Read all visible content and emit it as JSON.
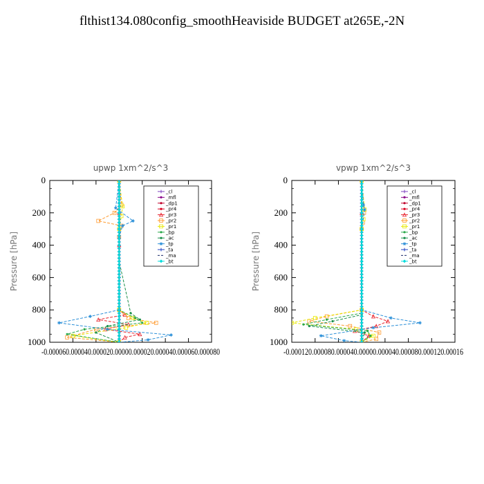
{
  "figure_title": "flthist134.080config_smoothHeaviside  BUDGET at265E,-2N",
  "chart_data": [
    {
      "type": "line",
      "title": "upwp   1xm^2/s^3",
      "ylabel": "Pressure [hPa]",
      "ylim": [
        1000,
        0
      ],
      "xlim": [
        -6e-05,
        8e-05
      ],
      "xtick_label_string": "-0.000060.000040.000020.00000.000020.000040.000060.000080",
      "xtick_values": [
        -6e-05,
        -4e-05,
        -2e-05,
        0,
        2e-05,
        4e-05,
        6e-05,
        8e-05
      ],
      "yticks": [
        0,
        200,
        400,
        600,
        800,
        1000
      ],
      "ytick_labels": [
        "0",
        "200",
        "400",
        "600",
        "800",
        "1000"
      ],
      "legend_position": "top-right",
      "series": [
        {
          "name": "_cl",
          "color": "#7b3fbf",
          "marker": "plus",
          "x": [
            0,
            0,
            0,
            0,
            0,
            0,
            0,
            0,
            0,
            0,
            0
          ],
          "y": [
            0,
            100,
            200,
            300,
            400,
            500,
            600,
            700,
            800,
            900,
            1000
          ]
        },
        {
          "name": "_mfl",
          "color": "#8b0a8b",
          "marker": "dot",
          "x": [
            0,
            0,
            0,
            0,
            0,
            0,
            0,
            0,
            0,
            0,
            0
          ],
          "y": [
            0,
            100,
            200,
            300,
            400,
            500,
            600,
            700,
            800,
            900,
            1000
          ]
        },
        {
          "name": "_dp1",
          "color": "#c0002a",
          "marker": "dot",
          "x": [
            0,
            0,
            0,
            0,
            0,
            0,
            0,
            0,
            0,
            0,
            0
          ],
          "y": [
            0,
            100,
            200,
            300,
            400,
            500,
            600,
            700,
            800,
            900,
            1000
          ]
        },
        {
          "name": "_pr4",
          "color": "#d8001e",
          "marker": "dot",
          "x": [
            0,
            0,
            0,
            0,
            0,
            0,
            0,
            0,
            0,
            0,
            0
          ],
          "y": [
            0,
            100,
            200,
            300,
            400,
            500,
            600,
            700,
            800,
            900,
            1000
          ]
        },
        {
          "name": "_pr3",
          "color": "#e8202a",
          "marker": "triangle",
          "x": [
            0,
            0,
            0,
            0,
            5e-06,
            -1.8e-05,
            8e-06,
            -1.2e-05,
            1.8e-05,
            5e-06,
            0
          ],
          "y": [
            0,
            200,
            400,
            800,
            830,
            860,
            890,
            920,
            950,
            970,
            1000
          ]
        },
        {
          "name": "_pr2",
          "color": "#ff9a2e",
          "marker": "square",
          "x": [
            0,
            2e-06,
            -4e-06,
            -1.8e-05,
            2e-06,
            0,
            0,
            8e-06,
            3.2e-05,
            -2e-05,
            -4.5e-05,
            0
          ],
          "y": [
            0,
            150,
            200,
            250,
            280,
            350,
            800,
            850,
            880,
            920,
            970,
            1000
          ]
        },
        {
          "name": "_pr1",
          "color": "#e8e800",
          "marker": "square",
          "x": [
            0,
            3e-06,
            2e-06,
            0,
            0,
            1.2e-05,
            2.4e-05,
            6e-06,
            -4e-05,
            0
          ],
          "y": [
            0,
            160,
            220,
            300,
            800,
            850,
            880,
            910,
            960,
            1000
          ]
        },
        {
          "name": "_bp",
          "color": "#2aa84a",
          "marker": "dot",
          "x": [
            0,
            0,
            0,
            1.4e-05,
            2e-05,
            -3e-05,
            -4.5e-05,
            0
          ],
          "y": [
            0,
            500,
            800,
            850,
            880,
            920,
            950,
            1000
          ]
        },
        {
          "name": "_ac",
          "color": "#1a8f4a",
          "marker": "dot",
          "x": [
            0,
            0,
            1e-05,
            1.8e-05,
            -1e-05,
            -2e-05,
            0
          ],
          "y": [
            0,
            500,
            820,
            860,
            900,
            940,
            1000
          ]
        },
        {
          "name": "_tp",
          "color": "#2a8fd8",
          "marker": "star",
          "x": [
            0,
            -3e-06,
            1.2e-05,
            3e-06,
            0,
            0,
            -2.5e-05,
            -5.2e-05,
            -1e-05,
            4.5e-05,
            2.5e-05,
            0
          ],
          "y": [
            0,
            170,
            250,
            280,
            350,
            800,
            840,
            880,
            920,
            955,
            985,
            1000
          ]
        },
        {
          "name": "_ta",
          "color": "#2040c0",
          "marker": "plus",
          "x": [
            0,
            0,
            0,
            0,
            0,
            0,
            0,
            0,
            0,
            0,
            0
          ],
          "y": [
            0,
            100,
            200,
            300,
            400,
            500,
            600,
            700,
            800,
            900,
            1000
          ]
        },
        {
          "name": "_ma",
          "color": "#1a2a6a",
          "marker": "none",
          "x": [
            0,
            0,
            0,
            0,
            0,
            0,
            0,
            0,
            0,
            0,
            0
          ],
          "y": [
            0,
            100,
            200,
            300,
            400,
            500,
            600,
            700,
            800,
            900,
            1000
          ]
        },
        {
          "name": "_bt",
          "color": "#00dcdc",
          "marker": "diamond",
          "x": [
            0,
            0,
            0,
            0,
            0,
            0,
            0,
            0,
            0,
            0,
            0
          ],
          "y": [
            0,
            100,
            200,
            300,
            400,
            500,
            600,
            700,
            800,
            900,
            1000
          ]
        }
      ]
    },
    {
      "type": "line",
      "title": "vpwp   1xm^2/s^3",
      "ylabel": "Pressure [hPa]",
      "ylim": [
        1000,
        0
      ],
      "xlim": [
        -0.00012,
        0.00016
      ],
      "xtick_label_string": "-0.000120.000080.000040.00000.000040.000080.000120.00016",
      "xtick_values": [
        -0.00012,
        -8e-05,
        -4e-05,
        0,
        4e-05,
        8e-05,
        0.00012,
        0.00016
      ],
      "yticks": [
        0,
        200,
        400,
        600,
        800,
        1000
      ],
      "ytick_labels": [
        "0",
        "200",
        "400",
        "600",
        "800",
        "1000"
      ],
      "legend_position": "top-right",
      "series": [
        {
          "name": "_cl",
          "color": "#7b3fbf",
          "marker": "plus",
          "x": [
            0,
            0,
            0,
            0,
            0,
            0,
            0,
            0,
            0,
            0,
            0
          ],
          "y": [
            0,
            100,
            200,
            300,
            400,
            500,
            600,
            700,
            800,
            900,
            1000
          ]
        },
        {
          "name": "_mfl",
          "color": "#8b0a8b",
          "marker": "dot",
          "x": [
            0,
            0,
            0,
            0,
            0,
            0,
            0,
            0,
            0,
            0,
            0
          ],
          "y": [
            0,
            100,
            200,
            300,
            400,
            500,
            600,
            700,
            800,
            900,
            1000
          ]
        },
        {
          "name": "_dp1",
          "color": "#c0002a",
          "marker": "dot",
          "x": [
            0,
            0,
            0,
            0,
            0,
            0,
            0,
            0,
            0,
            0,
            0
          ],
          "y": [
            0,
            100,
            200,
            300,
            400,
            500,
            600,
            700,
            800,
            900,
            1000
          ]
        },
        {
          "name": "_pr4",
          "color": "#d8001e",
          "marker": "dot",
          "x": [
            0,
            0,
            0,
            0,
            0,
            0,
            0,
            0,
            0,
            0,
            0
          ],
          "y": [
            0,
            100,
            200,
            300,
            400,
            500,
            600,
            700,
            800,
            900,
            1000
          ]
        },
        {
          "name": "_pr3",
          "color": "#e8202a",
          "marker": "triangle",
          "x": [
            0,
            0,
            0,
            2e-05,
            4.5e-05,
            2.5e-05,
            -1.2e-05,
            1.2e-05,
            0
          ],
          "y": [
            0,
            200,
            800,
            840,
            870,
            900,
            930,
            960,
            1000
          ]
        },
        {
          "name": "_pr2",
          "color": "#ff9a2e",
          "marker": "square",
          "x": [
            0,
            4e-06,
            2e-06,
            0,
            0,
            -6e-05,
            -9e-05,
            -2e-05,
            3e-05,
            2.5e-05,
            0
          ],
          "y": [
            0,
            200,
            260,
            300,
            800,
            840,
            870,
            900,
            940,
            980,
            1000
          ]
        },
        {
          "name": "_pr1",
          "color": "#e8e800",
          "marker": "square",
          "x": [
            0,
            5e-06,
            3e-06,
            0,
            0,
            -8e-05,
            -0.00012,
            -1e-05,
            2e-05,
            0
          ],
          "y": [
            0,
            180,
            240,
            300,
            800,
            850,
            880,
            920,
            960,
            1000
          ]
        },
        {
          "name": "_bp",
          "color": "#2aa84a",
          "marker": "dot",
          "x": [
            0,
            0,
            0,
            -6e-05,
            -0.0001,
            1e-05,
            1.5e-05,
            0
          ],
          "y": [
            0,
            500,
            820,
            860,
            890,
            930,
            960,
            1000
          ]
        },
        {
          "name": "_ac",
          "color": "#1a8f4a",
          "marker": "dot",
          "x": [
            0,
            0,
            0,
            -5e-05,
            -9e-05,
            5e-06,
            0
          ],
          "y": [
            0,
            500,
            830,
            870,
            900,
            940,
            1000
          ]
        },
        {
          "name": "_tp",
          "color": "#2a8fd8",
          "marker": "star",
          "x": [
            0,
            3e-06,
            5e-06,
            0,
            0,
            5e-05,
            0.0001,
            2e-05,
            -7e-05,
            -3e-05,
            0
          ],
          "y": [
            0,
            150,
            180,
            300,
            800,
            850,
            880,
            910,
            960,
            990,
            1000
          ]
        },
        {
          "name": "_ta",
          "color": "#2040c0",
          "marker": "plus",
          "x": [
            0,
            0,
            0,
            0,
            0,
            0,
            0,
            0,
            0,
            0,
            0
          ],
          "y": [
            0,
            100,
            200,
            300,
            400,
            500,
            600,
            700,
            800,
            900,
            1000
          ]
        },
        {
          "name": "_ma",
          "color": "#1a2a6a",
          "marker": "none",
          "x": [
            0,
            0,
            0,
            0,
            0,
            0,
            0,
            0,
            0,
            0,
            0
          ],
          "y": [
            0,
            100,
            200,
            300,
            400,
            500,
            600,
            700,
            800,
            900,
            1000
          ]
        },
        {
          "name": "_bt",
          "color": "#00dcdc",
          "marker": "diamond",
          "x": [
            0,
            0,
            0,
            0,
            0,
            0,
            0,
            0,
            0,
            0,
            0
          ],
          "y": [
            0,
            100,
            200,
            300,
            400,
            500,
            600,
            700,
            800,
            900,
            1000
          ]
        }
      ]
    }
  ]
}
